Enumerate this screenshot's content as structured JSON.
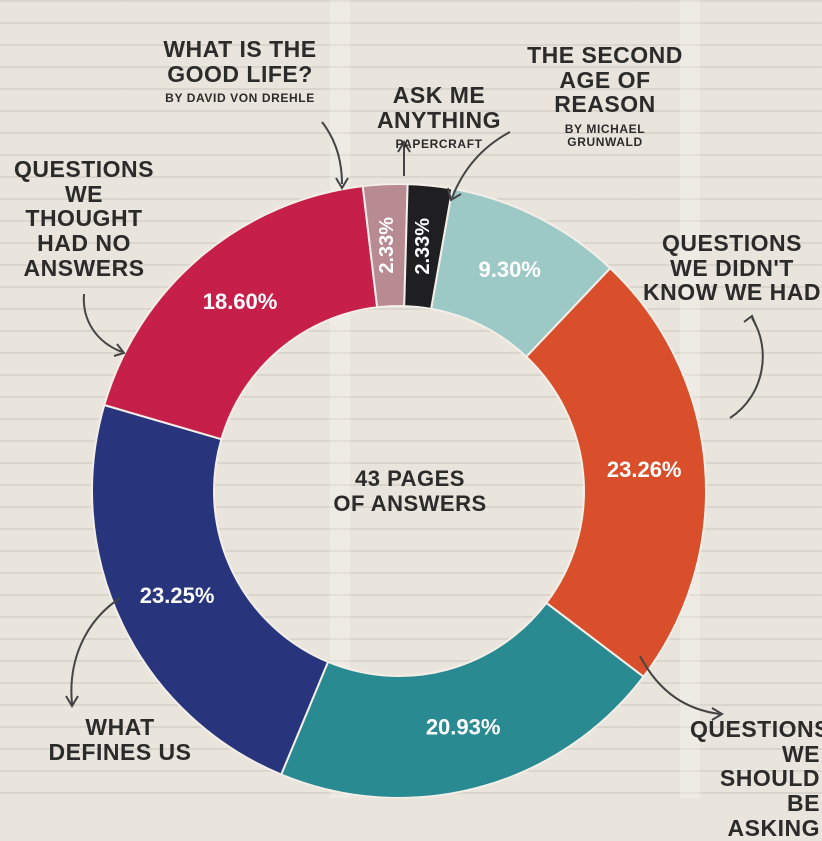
{
  "chart_data": {
    "type": "donut",
    "title": "",
    "center_label": "43 PAGES\nOF ANSWERS",
    "slices": [
      {
        "label": "The Second Age of Reason",
        "sublabel": "By Michael Grunwald",
        "value": 9.3,
        "value_label": "9.30%",
        "color": "#9cc9c6"
      },
      {
        "label": "Questions We Didn't Know We Had",
        "sublabel": "",
        "value": 23.26,
        "value_label": "23.26%",
        "color": "#d94f2b"
      },
      {
        "label": "Questions We Should Be Asking",
        "sublabel": "",
        "value": 20.93,
        "value_label": "20.93%",
        "color": "#2a8a92"
      },
      {
        "label": "What Defines Us",
        "sublabel": "",
        "value": 23.25,
        "value_label": "23.25%",
        "color": "#28357d"
      },
      {
        "label": "Questions We Thought Had No Answers",
        "sublabel": "",
        "value": 18.6,
        "value_label": "18.60%",
        "color": "#c61f4a"
      },
      {
        "label": "What Is the Good Life?",
        "sublabel": "By David Von Drehle",
        "value": 2.33,
        "value_label": "2.33%",
        "color": "#b88a92"
      },
      {
        "label": "Ask Me Anything",
        "sublabel": "Papercraft",
        "value": 2.33,
        "value_label": "2.33%",
        "color": "#1f1f22"
      }
    ]
  },
  "labels": {
    "good_life": {
      "title": "WHAT IS THE\nGOOD LIFE?",
      "sub": "BY DAVID VON DREHLE"
    },
    "ask_me": {
      "title": "ASK ME\nANYTHING",
      "sub": "PAPERCRAFT"
    },
    "second_age": {
      "title": "THE SECOND\nAGE OF REASON",
      "sub": "BY MICHAEL\nGRUNWALD"
    },
    "thought_no_answers": {
      "title": "QUESTIONS\nWE THOUGHT\nHAD NO\nANSWERS"
    },
    "didnt_know": {
      "title": "QUESTIONS\nWE DIDN'T\nKNOW WE HAD"
    },
    "defines_us": {
      "title": "WHAT\nDEFINES US"
    },
    "should_ask": {
      "title": "QUESTIONS\nWE SHOULD\nBE ASKING"
    }
  },
  "colors": {
    "ink": "#2b2b2b",
    "paper": "#e9e4dc"
  }
}
